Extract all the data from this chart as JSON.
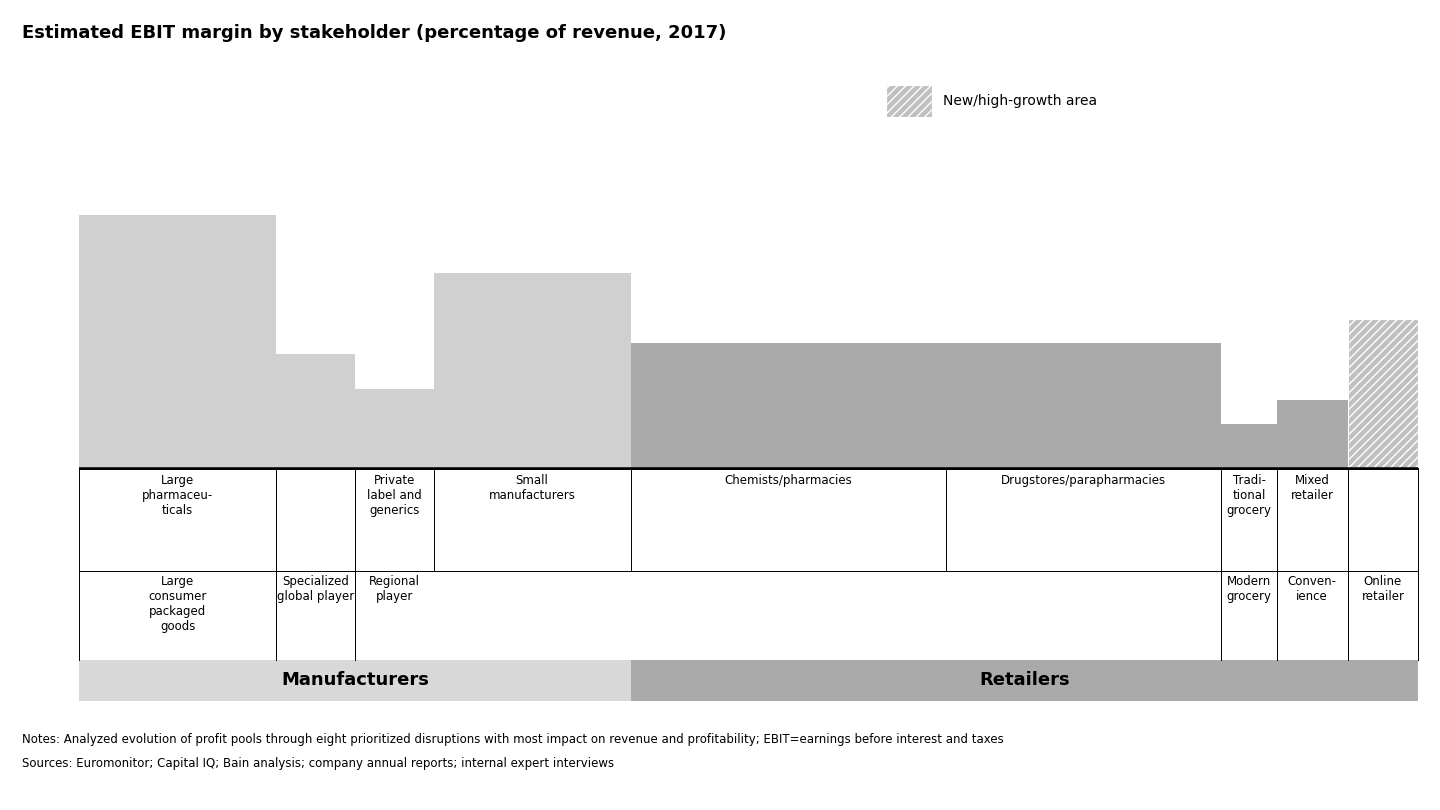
{
  "title": "Estimated EBIT margin by stakeholder (percentage of revenue, 2017)",
  "bars": [
    {
      "label_top": "Large\npharmaceu-\nticals",
      "label_bottom": "Large\nconsumer\npackaged\ngoods",
      "value": 22,
      "color": "#d0d0d0",
      "hatch": null,
      "group": "manufacturers"
    },
    {
      "label_top": "",
      "label_bottom": "Specialized\nglobal player",
      "value": 10,
      "color": "#d0d0d0",
      "hatch": null,
      "group": "manufacturers"
    },
    {
      "label_top": "Private\nlabel and\ngenerics",
      "label_bottom": "Regional\nplayer",
      "value": 7,
      "color": "#d0d0d0",
      "hatch": null,
      "group": "manufacturers"
    },
    {
      "label_top": "Small\nmanufacturers",
      "label_bottom": "",
      "value": 17,
      "color": "#d0d0d0",
      "hatch": null,
      "group": "manufacturers"
    },
    {
      "label_top": "Chemists/pharmacies",
      "label_bottom": "",
      "value": 11,
      "color": "#aaaaaa",
      "hatch": null,
      "group": "retailers"
    },
    {
      "label_top": "Drugstores/parapharmacies",
      "label_bottom": "",
      "value": 11,
      "color": "#aaaaaa",
      "hatch": null,
      "group": "retailers"
    },
    {
      "label_top": "Tradi-\ntional\ngrocery",
      "label_bottom": "Modern\ngrocery",
      "value": 4,
      "color": "#aaaaaa",
      "hatch": null,
      "group": "retailers"
    },
    {
      "label_top": "Mixed\nretailer",
      "label_bottom": "Conven-\nience",
      "value": 6,
      "color": "#aaaaaa",
      "hatch": null,
      "group": "retailers"
    },
    {
      "label_top": "",
      "label_bottom": "Online\nretailer",
      "value": 13,
      "color": "#aaaaaa",
      "hatch": "////",
      "group": "retailers"
    }
  ],
  "bar_widths": [
    2.5,
    1.0,
    1.0,
    2.5,
    4.0,
    3.5,
    0.7,
    0.9,
    0.9
  ],
  "manufacturers_label": "Manufacturers",
  "retailers_label": "Retailers",
  "legend_label": "New/high-growth area",
  "notes_line1": "Notes: Analyzed evolution of profit pools through eight prioritized disruptions with most impact on revenue and profitability; EBIT=earnings before interest and taxes",
  "notes_line2": "Sources: Euromonitor; Capital IQ; Bain analysis; company annual reports; internal expert interviews",
  "ylim_max": 28,
  "bg_color": "#ffffff",
  "manufacturer_bg": "#d8d8d8",
  "retailer_bg": "#aaaaaa"
}
